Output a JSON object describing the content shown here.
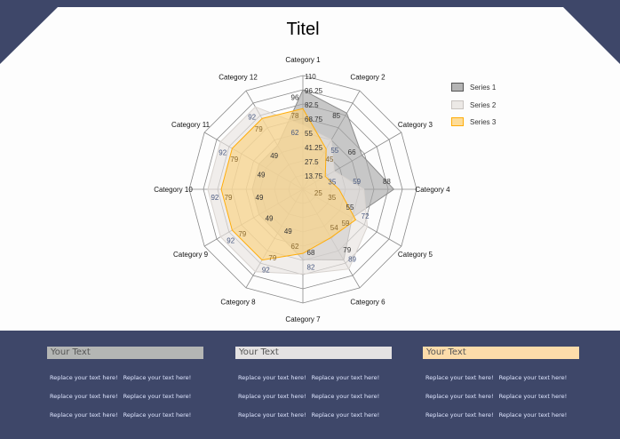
{
  "title": "Titel",
  "chart_data": {
    "type": "radar",
    "title": "Titel",
    "categories": [
      "Category 1",
      "Category 2",
      "Category 3",
      "Category 4",
      "Category 5",
      "Category 6",
      "Category 7",
      "Category 8",
      "Category 9",
      "Category 10",
      "Category 11",
      "Category 12"
    ],
    "axis": {
      "min": 0,
      "max": 110,
      "ticks": [
        "13.75",
        "27.5",
        "41.25",
        "55",
        "68.75",
        "82.5",
        "96.25",
        "110"
      ]
    },
    "series": [
      {
        "name": "Series 1",
        "color": "#8c8c8c",
        "fill": "#a6a6a6",
        "values": [
          96,
          85,
          66,
          88,
          55,
          79,
          68,
          49,
          49,
          49,
          49,
          49
        ]
      },
      {
        "name": "Series 2",
        "color": "#d9d4d0",
        "fill": "#e8e4e1",
        "values": [
          62,
          55,
          35,
          59,
          72,
          89,
          82,
          92,
          92,
          92,
          92,
          92
        ]
      },
      {
        "name": "Series 3",
        "color": "#ffad0a",
        "fill": "#fcd27c",
        "values": [
          78,
          45,
          25,
          35,
          59,
          54,
          62,
          79,
          79,
          79,
          79,
          79
        ]
      }
    ],
    "legend": "right",
    "grid": true
  },
  "panels": [
    {
      "heading": "Your Text",
      "color": "#b4b6b4",
      "rows": [
        [
          "Replace your text here!",
          "Replace your text here!"
        ],
        [
          "Replace your text here!",
          "Replace your text here!"
        ],
        [
          "Replace your text here!",
          "Replace your text here!"
        ]
      ]
    },
    {
      "heading": "Your Text",
      "color": "#e4e2e2",
      "rows": [
        [
          "Replace your text here!",
          "Replace your text here!"
        ],
        [
          "Replace your text here!",
          "Replace your text here!"
        ],
        [
          "Replace your text here!",
          "Replace your text here!"
        ]
      ]
    },
    {
      "heading": "Your Text",
      "color": "#fddcaa",
      "rows": [
        [
          "Replace your text here!",
          "Replace your text here!"
        ],
        [
          "Replace your text here!",
          "Replace your text here!"
        ],
        [
          "Replace your text here!",
          "Replace your text here!"
        ]
      ]
    }
  ]
}
